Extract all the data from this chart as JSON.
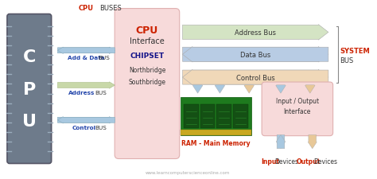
{
  "bg_color": "#ffffff",
  "cpu_body_color": "#6e7b8b",
  "cpu_pin_color": "#9aacbc",
  "cpu_interface_bg": "#f7dada",
  "cpu_interface_border": "#e0b0b0",
  "io_interface_bg": "#f7dada",
  "io_interface_border": "#e0b0b0",
  "address_bus_color": "#d4e4c4",
  "data_bus_color": "#b8cce4",
  "control_bus_color": "#f0d8b8",
  "arrow_blue": "#a8c8e0",
  "arrow_green": "#c8d8a8",
  "arrow_orange": "#e8c898",
  "red_color": "#cc2200",
  "blue_color": "#2244aa",
  "dark_blue": "#111188",
  "black": "#333333",
  "gray_light": "#cccccc",
  "watermark": "www.learncomputerscienceonline.com",
  "cpu_label": "CPU",
  "cpu_buses_label": "BUSES",
  "system_label": "SYSTEM",
  "bus_label": "BUS",
  "address_bus_text": "Address Bus",
  "data_bus_text": "Data Bus",
  "control_bus_text": "Control Bus",
  "add_data_bus": "Add & Data",
  "address_bus_left": "Address",
  "control_bus_left": "Control",
  "bus_word": "BUS",
  "chipset": "CHIPSET",
  "northbridge": "Northbridge",
  "southbridge": "Southbridge",
  "cpu_interface": "Interface",
  "ram_label": "RAM - Main Memory",
  "io_top": "Input / Output",
  "io_bottom": "Interface",
  "input_label": "Input",
  "output_label": "Output",
  "devices_label": "Devices"
}
